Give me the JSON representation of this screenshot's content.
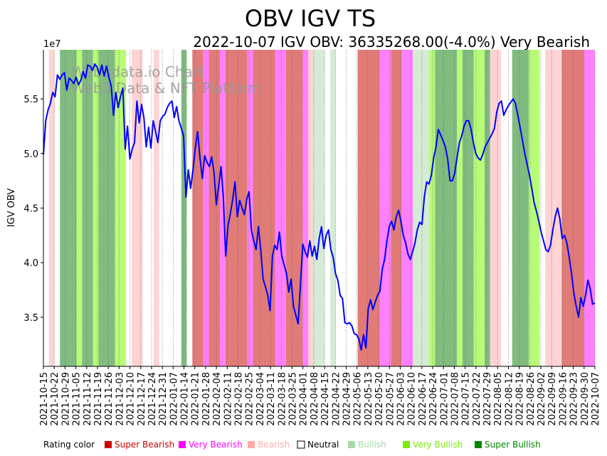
{
  "chart_data": {
    "type": "line",
    "title": "OBV IGV TS",
    "subtitle": "2022-10-07 IGV OBV: 36335268.00(-4.0%) Very Bearish",
    "ylabel": "IGV OBV",
    "y_scale_label": "1e7",
    "xlabel": "",
    "ylim": [
      3.05,
      5.95
    ],
    "y_ticks": [
      3.5,
      4.0,
      4.5,
      5.0,
      5.5
    ],
    "y_tick_labels": [
      "3.5",
      "4.0",
      "4.5",
      "5.0",
      "5.5"
    ],
    "x_tick_labels": [
      "2021-10-15",
      "2021-10-22",
      "2021-10-29",
      "2021-11-05",
      "2021-11-12",
      "2021-11-19",
      "2021-11-26",
      "2021-12-03",
      "2021-12-10",
      "2021-12-17",
      "2021-12-24",
      "2021-12-31",
      "2022-01-07",
      "2022-01-14",
      "2022-01-21",
      "2022-01-28",
      "2022-02-04",
      "2022-02-11",
      "2022-02-18",
      "2022-02-25",
      "2022-03-04",
      "2022-03-11",
      "2022-03-18",
      "2022-03-25",
      "2022-04-01",
      "2022-04-08",
      "2022-04-15",
      "2022-04-22",
      "2022-04-29",
      "2022-05-06",
      "2022-05-13",
      "2022-05-20",
      "2022-05-27",
      "2022-06-03",
      "2022-06-10",
      "2022-06-17",
      "2022-06-24",
      "2022-07-01",
      "2022-07-08",
      "2022-07-15",
      "2022-07-22",
      "2022-07-29",
      "2022-08-05",
      "2022-08-12",
      "2022-08-19",
      "2022-08-26",
      "2022-09-02",
      "2022-09-09",
      "2022-09-16",
      "2022-09-23",
      "2022-09-30",
      "2022-10-07"
    ],
    "series": [
      {
        "name": "IGV OBV",
        "color": "#0000ff",
        "values": [
          4.99,
          5.3,
          5.4,
          5.46,
          5.56,
          5.52,
          5.72,
          5.68,
          5.72,
          5.74,
          5.58,
          5.69,
          5.67,
          5.64,
          5.7,
          5.63,
          5.67,
          5.75,
          5.69,
          5.81,
          5.8,
          5.76,
          5.82,
          5.79,
          5.72,
          5.81,
          5.71,
          5.8,
          5.7,
          5.62,
          5.35,
          5.56,
          5.42,
          5.52,
          5.6,
          5.04,
          5.25,
          4.95,
          5.04,
          5.1,
          5.48,
          5.28,
          5.45,
          5.33,
          5.06,
          5.24,
          5.05,
          5.3,
          5.2,
          5.1,
          5.3,
          5.34,
          5.36,
          5.42,
          5.46,
          5.48,
          5.33,
          5.43,
          5.3,
          5.23,
          5.16,
          4.6,
          4.85,
          4.68,
          4.85,
          5.05,
          5.2,
          4.96,
          4.77,
          4.98,
          4.92,
          4.88,
          4.97,
          4.83,
          4.53,
          4.7,
          4.88,
          4.6,
          4.06,
          4.34,
          4.45,
          4.58,
          4.74,
          4.42,
          4.57,
          4.5,
          4.44,
          4.58,
          4.65,
          4.3,
          4.2,
          4.12,
          4.33,
          4.12,
          3.85,
          3.78,
          3.7,
          3.56,
          4.06,
          4.16,
          4.12,
          4.28,
          4.06,
          3.98,
          3.9,
          3.73,
          3.85,
          3.6,
          3.52,
          3.44,
          3.8,
          4.17,
          4.1,
          4.05,
          4.2,
          4.06,
          4.15,
          4.03,
          4.22,
          4.33,
          4.13,
          4.25,
          4.3,
          4.12,
          4.05,
          3.9,
          3.84,
          3.7,
          3.67,
          3.45,
          3.44,
          3.45,
          3.42,
          3.35,
          3.34,
          3.3,
          3.2,
          3.34,
          3.22,
          3.58,
          3.66,
          3.57,
          3.64,
          3.7,
          3.74,
          3.94,
          4.03,
          4.2,
          4.33,
          4.38,
          4.3,
          4.42,
          4.48,
          4.38,
          4.25,
          4.18,
          4.08,
          4.03,
          4.1,
          4.18,
          4.3,
          4.37,
          4.35,
          4.6,
          4.74,
          4.72,
          4.8,
          4.96,
          5.06,
          5.22,
          5.17,
          5.12,
          5.06,
          4.95,
          4.75,
          4.75,
          4.82,
          4.96,
          5.1,
          5.16,
          5.25,
          5.3,
          5.3,
          5.22,
          5.1,
          5.0,
          4.96,
          4.94,
          4.99,
          5.06,
          5.1,
          5.14,
          5.18,
          5.23,
          5.38,
          5.46,
          5.48,
          5.35,
          5.4,
          5.44,
          5.47,
          5.5,
          5.46,
          5.35,
          5.24,
          5.12,
          5.0,
          4.9,
          4.8,
          4.68,
          4.55,
          4.47,
          4.38,
          4.28,
          4.2,
          4.12,
          4.1,
          4.16,
          4.3,
          4.42,
          4.5,
          4.4,
          4.22,
          4.25,
          4.18,
          4.05,
          3.9,
          3.72,
          3.6,
          3.5,
          3.68,
          3.6,
          3.7,
          3.84,
          3.76,
          3.62,
          3.63
        ]
      }
    ],
    "rating_bands": [
      [
        "neutral",
        1
      ],
      [
        "bearish",
        1
      ],
      [
        "neutral",
        1
      ],
      [
        "super-bullish",
        3
      ],
      [
        "very-bullish",
        1
      ],
      [
        "super-bullish",
        2
      ],
      [
        "very-bullish",
        1
      ],
      [
        "super-bullish",
        3
      ],
      [
        "very-bullish",
        2
      ],
      [
        "neutral",
        1
      ],
      [
        "bearish",
        2
      ],
      [
        "neutral",
        2
      ],
      [
        "bearish",
        1
      ],
      [
        "neutral",
        4
      ],
      [
        "super-bullish",
        1
      ],
      [
        "neutral",
        1
      ],
      [
        "super-bearish",
        2
      ],
      [
        "very-bearish",
        1
      ],
      [
        "super-bearish",
        2
      ],
      [
        "very-bearish",
        1
      ],
      [
        "super-bearish",
        4
      ],
      [
        "very-bearish",
        1
      ],
      [
        "super-bearish",
        4
      ],
      [
        "very-bearish",
        2
      ],
      [
        "super-bearish",
        3
      ],
      [
        "very-bearish",
        1
      ],
      [
        "bearish",
        1
      ],
      [
        "bullish",
        2
      ],
      [
        "neutral",
        1
      ],
      [
        "bullish",
        1
      ],
      [
        "neutral",
        4
      ],
      [
        "super-bearish",
        4
      ],
      [
        "very-bearish",
        2
      ],
      [
        "super-bearish",
        2
      ],
      [
        "very-bearish",
        2
      ],
      [
        "bullish",
        3
      ],
      [
        "very-bullish",
        1
      ],
      [
        "super-bullish",
        4
      ],
      [
        "very-bullish",
        1
      ],
      [
        "super-bullish",
        2
      ],
      [
        "very-bullish",
        2
      ],
      [
        "super-bullish",
        1
      ],
      [
        "bearish",
        2
      ],
      [
        "neutral",
        2
      ],
      [
        "super-bullish",
        3
      ],
      [
        "very-bullish",
        2
      ],
      [
        "neutral",
        1
      ],
      [
        "bearish",
        3
      ],
      [
        "super-bearish",
        4
      ],
      [
        "very-bearish",
        2
      ]
    ],
    "legend_title": "Rating color",
    "legend": [
      {
        "key": "super-bearish",
        "label": "Super Bearish",
        "color": "#cc0000",
        "text_color": "#cc0000"
      },
      {
        "key": "very-bearish",
        "label": "Very Bearish",
        "color": "#ff00ff",
        "text_color": "#ff00ff"
      },
      {
        "key": "bearish",
        "label": "Bearish",
        "color": "#ffaaaa",
        "text_color": "#ffaaaa"
      },
      {
        "key": "neutral",
        "label": "Neutral",
        "color": "#ffffff",
        "text_color": "#000000"
      },
      {
        "key": "bullish",
        "label": "Bullish",
        "color": "#a8d8a8",
        "text_color": "#a8d8a8"
      },
      {
        "key": "very-bullish",
        "label": "Very Bullish",
        "color": "#77ee00",
        "text_color": "#77ee00"
      },
      {
        "key": "super-bullish",
        "label": "Super Bullish",
        "color": "#008800",
        "text_color": "#008800"
      }
    ],
    "band_fill": {
      "super-bearish": "#e07b78",
      "very-bearish": "#ff80ff",
      "bearish": "#ffd3d3",
      "neutral": "#ffffff",
      "bullish": "#d4ebd4",
      "very-bullish": "#b9fb76",
      "super-bullish": "#80bb80"
    },
    "watermark": [
      "Web3data.io Chart",
      "Web3 Data & NFT Platform"
    ]
  }
}
